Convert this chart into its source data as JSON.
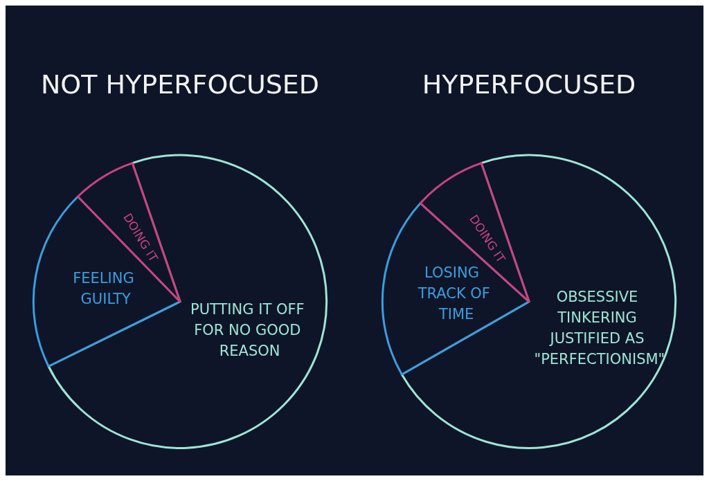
{
  "chart_data": [
    {
      "type": "pie",
      "title": "NOT HYPERFOCUSED",
      "categories": [
        "PUTTING IT OFF FOR NO GOOD REASON",
        "FEELING GUILTY",
        "DOING IT"
      ],
      "values": [
        73,
        20,
        7
      ],
      "colors": [
        "#9ee6d6",
        "#3b9ee0",
        "#c9437f"
      ]
    },
    {
      "type": "pie",
      "title": "HYPERFOCUSED",
      "categories": [
        "OBSESSIVE TINKERING JUSTIFIED AS \"PERFECTIONISM\"",
        "LOSING TRACK OF TIME",
        "DOING IT"
      ],
      "values": [
        72,
        20,
        8
      ],
      "colors": [
        "#9ee6d6",
        "#3b9ee0",
        "#c9437f"
      ]
    }
  ]
}
